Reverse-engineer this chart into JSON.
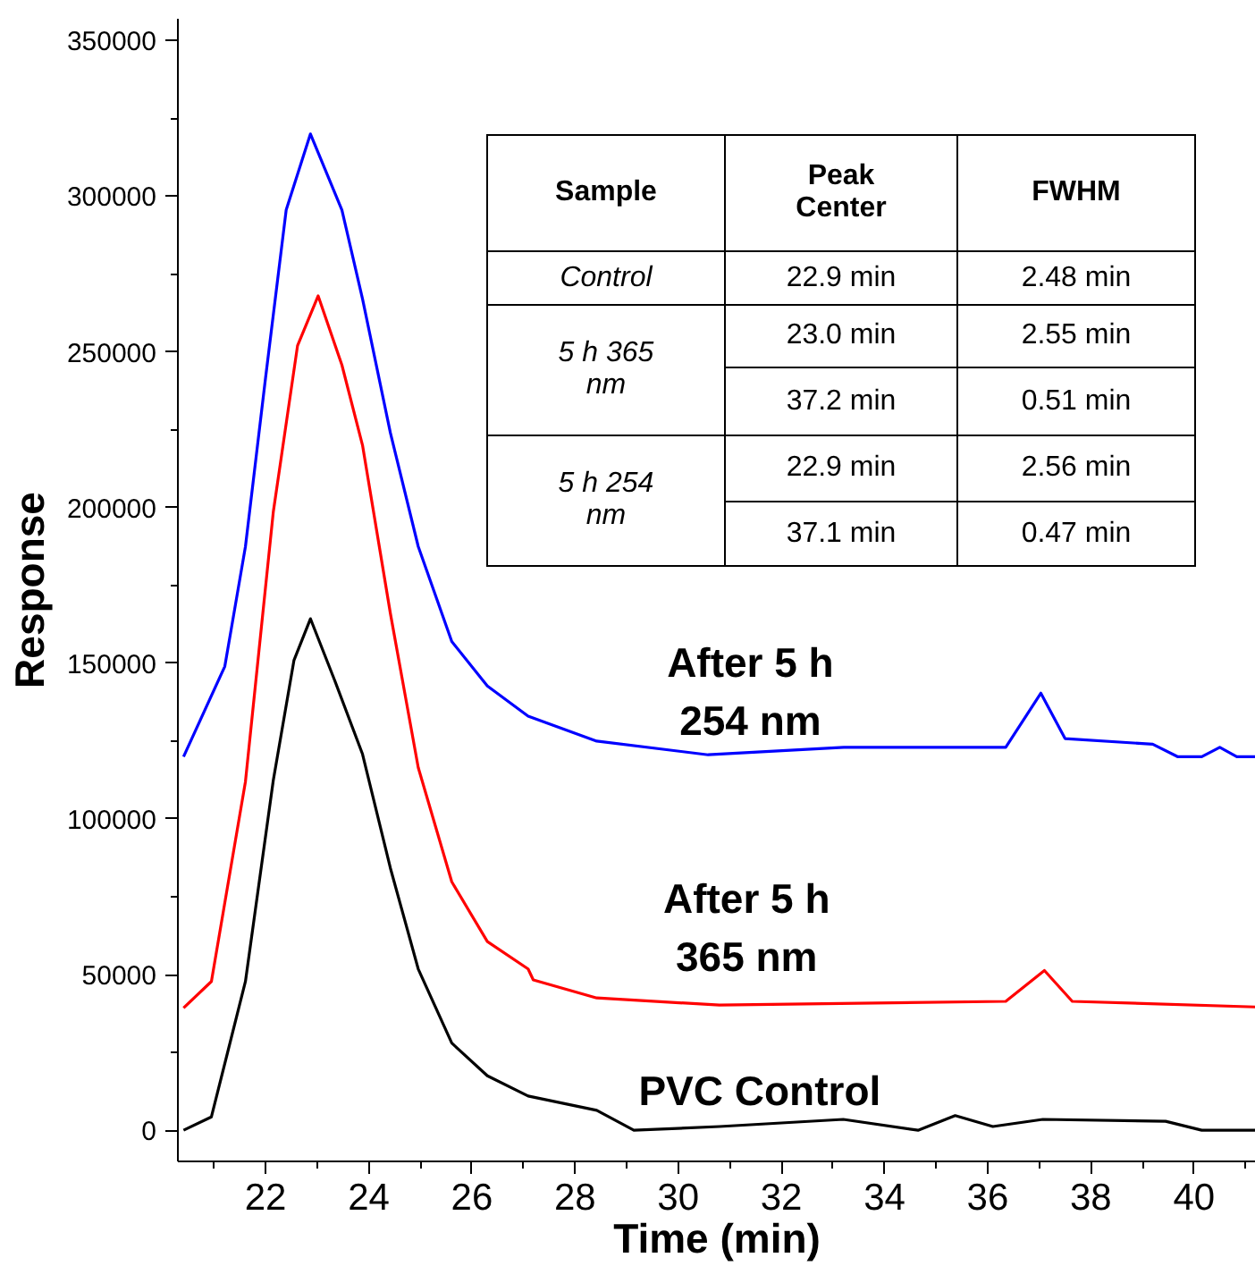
{
  "chart_data": {
    "type": "line",
    "xlabel": "Time (min)",
    "ylabel": "Response",
    "xlim": [
      20.3,
      41.2
    ],
    "ylim": [
      -10000,
      357000
    ],
    "xticks": [
      22,
      24,
      26,
      28,
      30,
      32,
      34,
      36,
      38,
      40
    ],
    "yticks": [
      0,
      50000,
      100000,
      150000,
      200000,
      250000,
      300000,
      350000
    ],
    "grid": false,
    "marker": "none",
    "line_style": "solid",
    "series": [
      {
        "color": "#0000ff",
        "x": [
          20.41,
          21.21,
          21.61,
          22.0,
          22.4,
          22.87,
          23.48,
          23.88,
          24.42,
          24.96,
          25.61,
          26.3,
          27.09,
          28.42,
          30.58,
          33.21,
          36.35,
          37.03,
          37.5,
          39.2,
          39.68,
          40.15,
          40.5,
          40.83,
          41.2
        ],
        "values": [
          120000,
          149000,
          187500,
          241700,
          295600,
          320000,
          295600,
          267000,
          224000,
          187500,
          157000,
          142700,
          133000,
          125000,
          120600,
          123000,
          123000,
          140400,
          125800,
          124000,
          120000,
          120000,
          123000,
          120000,
          120000
        ]
      },
      {
        "color": "#ff0000",
        "x": [
          20.41,
          20.95,
          21.61,
          22.15,
          22.62,
          23.02,
          23.48,
          23.88,
          24.42,
          24.96,
          25.61,
          26.3,
          27.09,
          27.19,
          28.42,
          30.8,
          36.35,
          37.1,
          37.64,
          41.2
        ],
        "values": [
          39300,
          47800,
          112000,
          198600,
          252000,
          268000,
          245800,
          220000,
          166000,
          116500,
          79800,
          60600,
          51800,
          48300,
          42500,
          40200,
          41400,
          51300,
          41400,
          39600
        ]
      },
      {
        "color": "#000000",
        "x": [
          20.41,
          20.95,
          21.61,
          22.15,
          22.55,
          22.87,
          23.34,
          23.88,
          24.42,
          24.96,
          25.61,
          26.3,
          27.09,
          28.42,
          29.14,
          30.8,
          33.2,
          34.65,
          35.37,
          36.1,
          37.07,
          39.45,
          40.15,
          41.2
        ],
        "values": [
          0,
          4300,
          47800,
          112400,
          150900,
          164300,
          144500,
          120800,
          84200,
          51800,
          28000,
          17500,
          11000,
          6400,
          0,
          1200,
          3500,
          0,
          4700,
          1200,
          3500,
          2900,
          0,
          0
        ]
      }
    ],
    "annotations": [
      "After 5 h\n254 nm",
      "After 5 h\n365 nm",
      "PVC Control",
      "Sample",
      "Peak\nCenter",
      "FWHM",
      "Control",
      "22.9 min",
      "2.48 min",
      "5 h 365\nnm",
      "23.0 min",
      "2.55 min",
      "37.2 min",
      "0.51 min",
      "5 h 254\nnm",
      "22.9 min",
      "2.56 min",
      "37.1 min",
      "0.47 min"
    ]
  }
}
